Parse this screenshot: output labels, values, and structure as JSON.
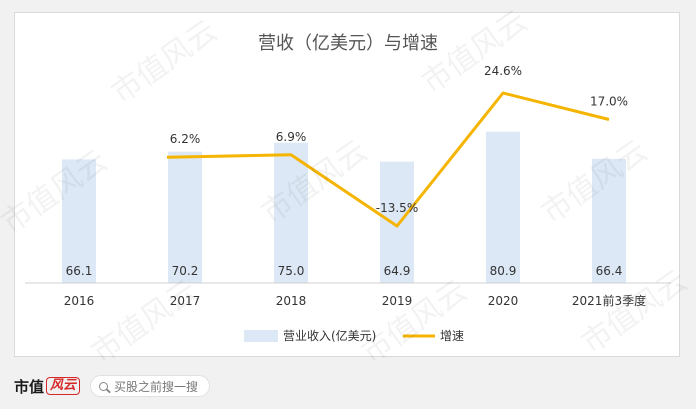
{
  "chart_data": {
    "type": "bar+line",
    "title": "营收（亿美元）与增速",
    "categories": [
      "2016",
      "2017",
      "2018",
      "2019",
      "2020",
      "2021前3季度"
    ],
    "series": [
      {
        "name": "营业收入(亿美元)",
        "type": "bar",
        "values": [
          66.1,
          70.2,
          75.0,
          64.9,
          80.9,
          66.4
        ],
        "value_labels": [
          "66.1",
          "70.2",
          "75.0",
          "64.9",
          "80.9",
          "66.4"
        ],
        "color": "#dce8f5"
      },
      {
        "name": "增速",
        "type": "line",
        "values": [
          null,
          6.2,
          6.9,
          -13.5,
          24.6,
          17.0
        ],
        "value_labels": [
          "",
          "6.2%",
          "6.9%",
          "-13.5%",
          "24.6%",
          "17.0%"
        ],
        "color": "#f5b400"
      }
    ],
    "bar_ylim": [
      0,
      95
    ],
    "line_ylim": [
      -25,
      45
    ],
    "legend": "bottom",
    "grid": false
  },
  "footer": {
    "logo_text": "市值",
    "logo_mark": "风云",
    "search_placeholder": "买股之前搜一搜"
  },
  "watermark_text": "市值风云"
}
